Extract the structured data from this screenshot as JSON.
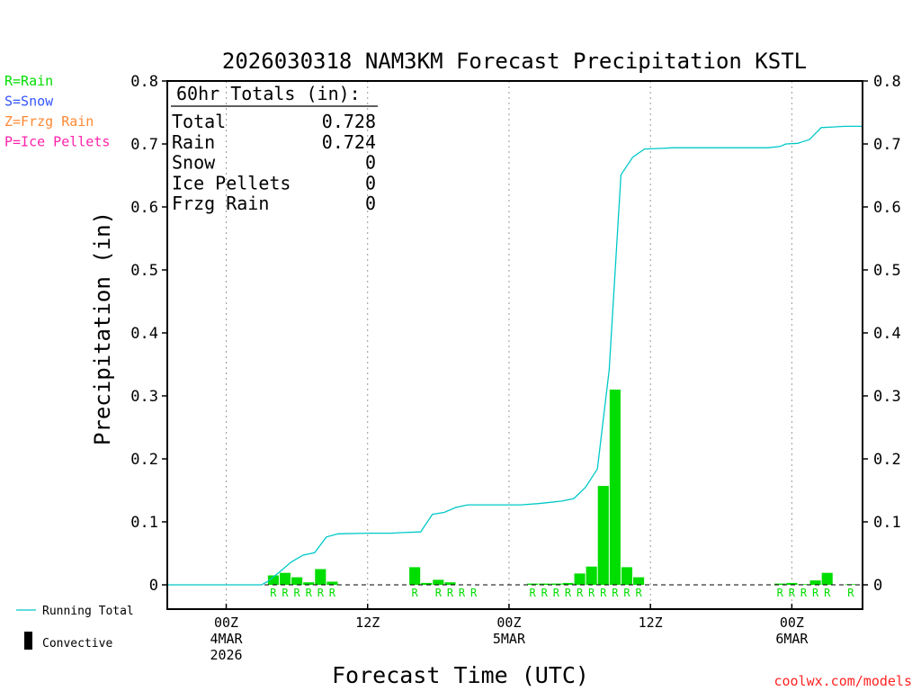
{
  "chart_data": {
    "type": "bar",
    "title": "2026030318 NAM3KM Forecast Precipitation KSTL",
    "xlabel": "Forecast Time (UTC)",
    "ylabel": "Precipitation (in)",
    "ylim": [
      0,
      0.8
    ],
    "xlim_hours": [
      -5,
      54
    ],
    "y_ticks": [
      "0",
      "0.1",
      "0.2",
      "0.3",
      "0.4",
      "0.5",
      "0.6",
      "0.7",
      "0.8"
    ],
    "x_ticks": [
      {
        "hour": 0,
        "lines": [
          "00Z",
          "4MAR",
          "2026"
        ]
      },
      {
        "hour": 12,
        "lines": [
          "12Z"
        ]
      },
      {
        "hour": 24,
        "lines": [
          "00Z",
          "5MAR"
        ]
      },
      {
        "hour": 36,
        "lines": [
          "12Z"
        ]
      },
      {
        "hour": 48,
        "lines": [
          "00Z",
          "6MAR"
        ]
      }
    ],
    "legend_types": [
      {
        "code": "R",
        "text": "R=Rain",
        "color": "#00dd00"
      },
      {
        "code": "S",
        "text": "S=Snow",
        "color": "#3355ff"
      },
      {
        "code": "Z",
        "text": "Z=Frzg Rain",
        "color": "#ff8833"
      },
      {
        "code": "P",
        "text": "P=Ice Pellets",
        "color": "#ff22aa"
      }
    ],
    "bottom_legend": {
      "running_total": "Running Total",
      "convective": "Convective"
    },
    "totals_box": {
      "heading": "60hr Totals (in):",
      "rows": [
        {
          "label": "Total",
          "value": "0.728"
        },
        {
          "label": "Rain",
          "value": "0.724"
        },
        {
          "label": "Snow",
          "value": "0"
        },
        {
          "label": "Ice Pellets",
          "value": "0"
        },
        {
          "label": "Frzg Rain",
          "value": "0"
        }
      ]
    },
    "series": [
      {
        "name": "Hourly Precipitation (Convective)",
        "type": "bar",
        "color": "#00dd00",
        "points": [
          {
            "hour": 4,
            "value": 0.015
          },
          {
            "hour": 5,
            "value": 0.019
          },
          {
            "hour": 6,
            "value": 0.012
          },
          {
            "hour": 7,
            "value": 0.004
          },
          {
            "hour": 8,
            "value": 0.025
          },
          {
            "hour": 9,
            "value": 0.005
          },
          {
            "hour": 16,
            "value": 0.028
          },
          {
            "hour": 17,
            "value": 0.003
          },
          {
            "hour": 18,
            "value": 0.008
          },
          {
            "hour": 19,
            "value": 0.004
          },
          {
            "hour": 26,
            "value": 0.002
          },
          {
            "hour": 27,
            "value": 0.002
          },
          {
            "hour": 28,
            "value": 0.002
          },
          {
            "hour": 29,
            "value": 0.003
          },
          {
            "hour": 30,
            "value": 0.018
          },
          {
            "hour": 31,
            "value": 0.029
          },
          {
            "hour": 32,
            "value": 0.157
          },
          {
            "hour": 33,
            "value": 0.31
          },
          {
            "hour": 34,
            "value": 0.028
          },
          {
            "hour": 35,
            "value": 0.012
          },
          {
            "hour": 47,
            "value": 0.002
          },
          {
            "hour": 48,
            "value": 0.003
          },
          {
            "hour": 49,
            "value": 0.001
          },
          {
            "hour": 50,
            "value": 0.007
          },
          {
            "hour": 51,
            "value": 0.019
          },
          {
            "hour": 53,
            "value": 0.001
          }
        ]
      },
      {
        "name": "Running Total",
        "type": "line",
        "color": "#00c8c8",
        "points": [
          {
            "hour": -5,
            "value": 0
          },
          {
            "hour": 3,
            "value": 0
          },
          {
            "hour": 3.5,
            "value": 0.005
          },
          {
            "hour": 4.5,
            "value": 0.02
          },
          {
            "hour": 5.5,
            "value": 0.036
          },
          {
            "hour": 6.5,
            "value": 0.047
          },
          {
            "hour": 7.5,
            "value": 0.051
          },
          {
            "hour": 8.5,
            "value": 0.076
          },
          {
            "hour": 9.5,
            "value": 0.081
          },
          {
            "hour": 12,
            "value": 0.082
          },
          {
            "hour": 14,
            "value": 0.082
          },
          {
            "hour": 15,
            "value": 0.083
          },
          {
            "hour": 16.5,
            "value": 0.084
          },
          {
            "hour": 17.5,
            "value": 0.112
          },
          {
            "hour": 18.5,
            "value": 0.115
          },
          {
            "hour": 19.5,
            "value": 0.123
          },
          {
            "hour": 20.5,
            "value": 0.127
          },
          {
            "hour": 25,
            "value": 0.127
          },
          {
            "hour": 26.5,
            "value": 0.129
          },
          {
            "hour": 27.5,
            "value": 0.131
          },
          {
            "hour": 28.5,
            "value": 0.133
          },
          {
            "hour": 29.5,
            "value": 0.137
          },
          {
            "hour": 30.5,
            "value": 0.155
          },
          {
            "hour": 31.5,
            "value": 0.184
          },
          {
            "hour": 32.5,
            "value": 0.341
          },
          {
            "hour": 33.5,
            "value": 0.651
          },
          {
            "hour": 34.5,
            "value": 0.679
          },
          {
            "hour": 35.5,
            "value": 0.692
          },
          {
            "hour": 37,
            "value": 0.693
          },
          {
            "hour": 38,
            "value": 0.694
          },
          {
            "hour": 46,
            "value": 0.694
          },
          {
            "hour": 47,
            "value": 0.696
          },
          {
            "hour": 47.5,
            "value": 0.7
          },
          {
            "hour": 48.5,
            "value": 0.701
          },
          {
            "hour": 49.5,
            "value": 0.707
          },
          {
            "hour": 50.5,
            "value": 0.726
          },
          {
            "hour": 51.5,
            "value": 0.727
          },
          {
            "hour": 52.5,
            "value": 0.728
          },
          {
            "hour": 54,
            "value": 0.728
          }
        ]
      }
    ],
    "type_labels": [
      {
        "hour": 4,
        "code": "R"
      },
      {
        "hour": 5,
        "code": "R"
      },
      {
        "hour": 6,
        "code": "R"
      },
      {
        "hour": 7,
        "code": "R"
      },
      {
        "hour": 8,
        "code": "R"
      },
      {
        "hour": 9,
        "code": "R"
      },
      {
        "hour": 16,
        "code": "R"
      },
      {
        "hour": 18,
        "code": "R"
      },
      {
        "hour": 19,
        "code": "R"
      },
      {
        "hour": 20,
        "code": "R"
      },
      {
        "hour": 21,
        "code": "R"
      },
      {
        "hour": 26,
        "code": "R"
      },
      {
        "hour": 27,
        "code": "R"
      },
      {
        "hour": 28,
        "code": "R"
      },
      {
        "hour": 29,
        "code": "R"
      },
      {
        "hour": 30,
        "code": "R"
      },
      {
        "hour": 31,
        "code": "R"
      },
      {
        "hour": 32,
        "code": "R"
      },
      {
        "hour": 33,
        "code": "R"
      },
      {
        "hour": 34,
        "code": "R"
      },
      {
        "hour": 35,
        "code": "R"
      },
      {
        "hour": 47,
        "code": "R"
      },
      {
        "hour": 48,
        "code": "R"
      },
      {
        "hour": 49,
        "code": "R"
      },
      {
        "hour": 50,
        "code": "R"
      },
      {
        "hour": 51,
        "code": "R"
      },
      {
        "hour": 53,
        "code": "R"
      }
    ]
  },
  "credit": "coolwx.com/models"
}
